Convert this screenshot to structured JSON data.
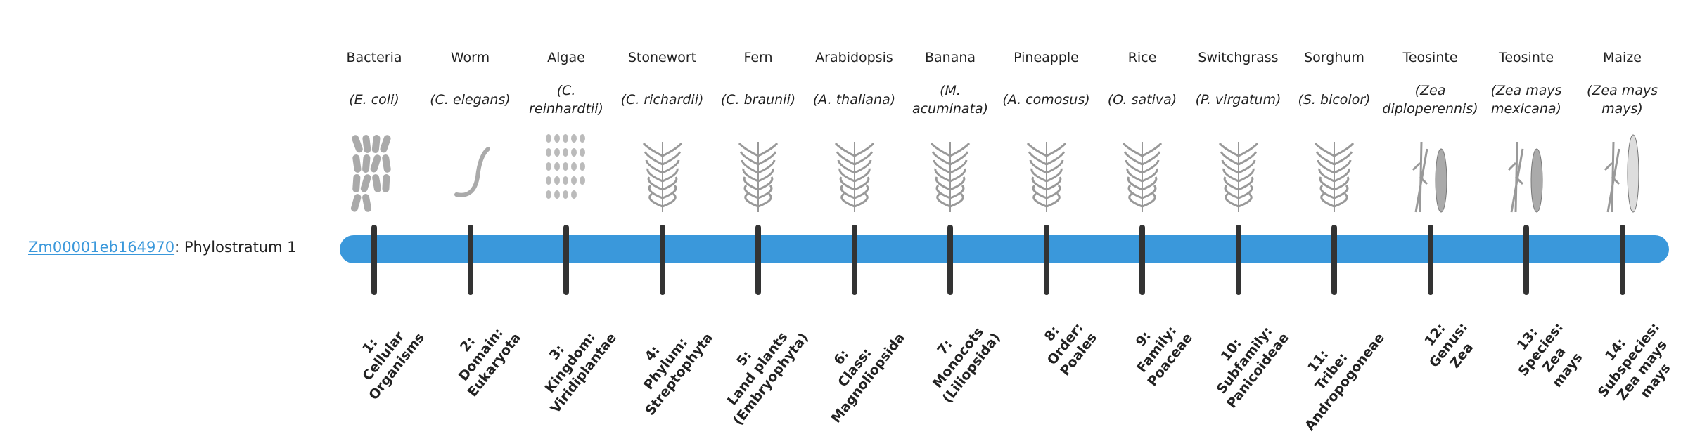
{
  "gene": {
    "id": "Zm00001eb164970",
    "suffix": ": Phylostratum 1"
  },
  "colors": {
    "bar": "#3a98db",
    "tick": "#333333",
    "link": "#3a98db"
  },
  "organisms": [
    {
      "common": "Bacteria",
      "scientific": "(E. coli)",
      "icon": "bacteria-image"
    },
    {
      "common": "Worm",
      "scientific": "(C. elegans)",
      "icon": "worm-image"
    },
    {
      "common": "Algae",
      "scientific": "(C. reinhardtii)",
      "icon": "algae-image"
    },
    {
      "common": "Stonewort",
      "scientific": "(C. richardii)",
      "icon": "stonewort-image"
    },
    {
      "common": "Fern",
      "scientific": "(C. braunii)",
      "icon": "fern-image"
    },
    {
      "common": "Arabidopsis",
      "scientific": "(A. thaliana)",
      "icon": "arabidopsis-image"
    },
    {
      "common": "Banana",
      "scientific": "(M. acuminata)",
      "icon": "banana-image"
    },
    {
      "common": "Pineapple",
      "scientific": "(A. comosus)",
      "icon": "pineapple-image"
    },
    {
      "common": "Rice",
      "scientific": "(O. sativa)",
      "icon": "rice-image"
    },
    {
      "common": "Switchgrass",
      "scientific": "(P. virgatum)",
      "icon": "switchgrass-image"
    },
    {
      "common": "Sorghum",
      "scientific": "(S. bicolor)",
      "icon": "sorghum-image"
    },
    {
      "common": "Teosinte",
      "scientific": "(Zea diploperennis)",
      "icon": "teosinte-image"
    },
    {
      "common": "Teosinte",
      "scientific": "(Zea mays mexicana)",
      "icon": "teosinte-image"
    },
    {
      "common": "Maize",
      "scientific": "(Zea mays mays)",
      "icon": "maize-image"
    }
  ],
  "strata": [
    "1:\nCellular\nOrganisms",
    "2:\nDomain:\nEukaryota",
    "3:\nKingdom:\nViridiplantae",
    "4:\nPhylum:\nStreptophyta",
    "5:\nLand plants\n(Embryophyta)",
    "6:\nClass:\nMagnoliopsida",
    "7:\nMonocots\n(Liliopsida)",
    "8:\nOrder:\nPoales",
    "9:\nFamily:\nPoaceae",
    "10:\nSubfamily:\nPanicoideae",
    "11:\nTribe:\nAndropogoneae",
    "12:\nGenus:\nZea",
    "13:\nSpecies:\nZea\nmays",
    "14:\nSubspecies:\nZea mays\nmays"
  ]
}
